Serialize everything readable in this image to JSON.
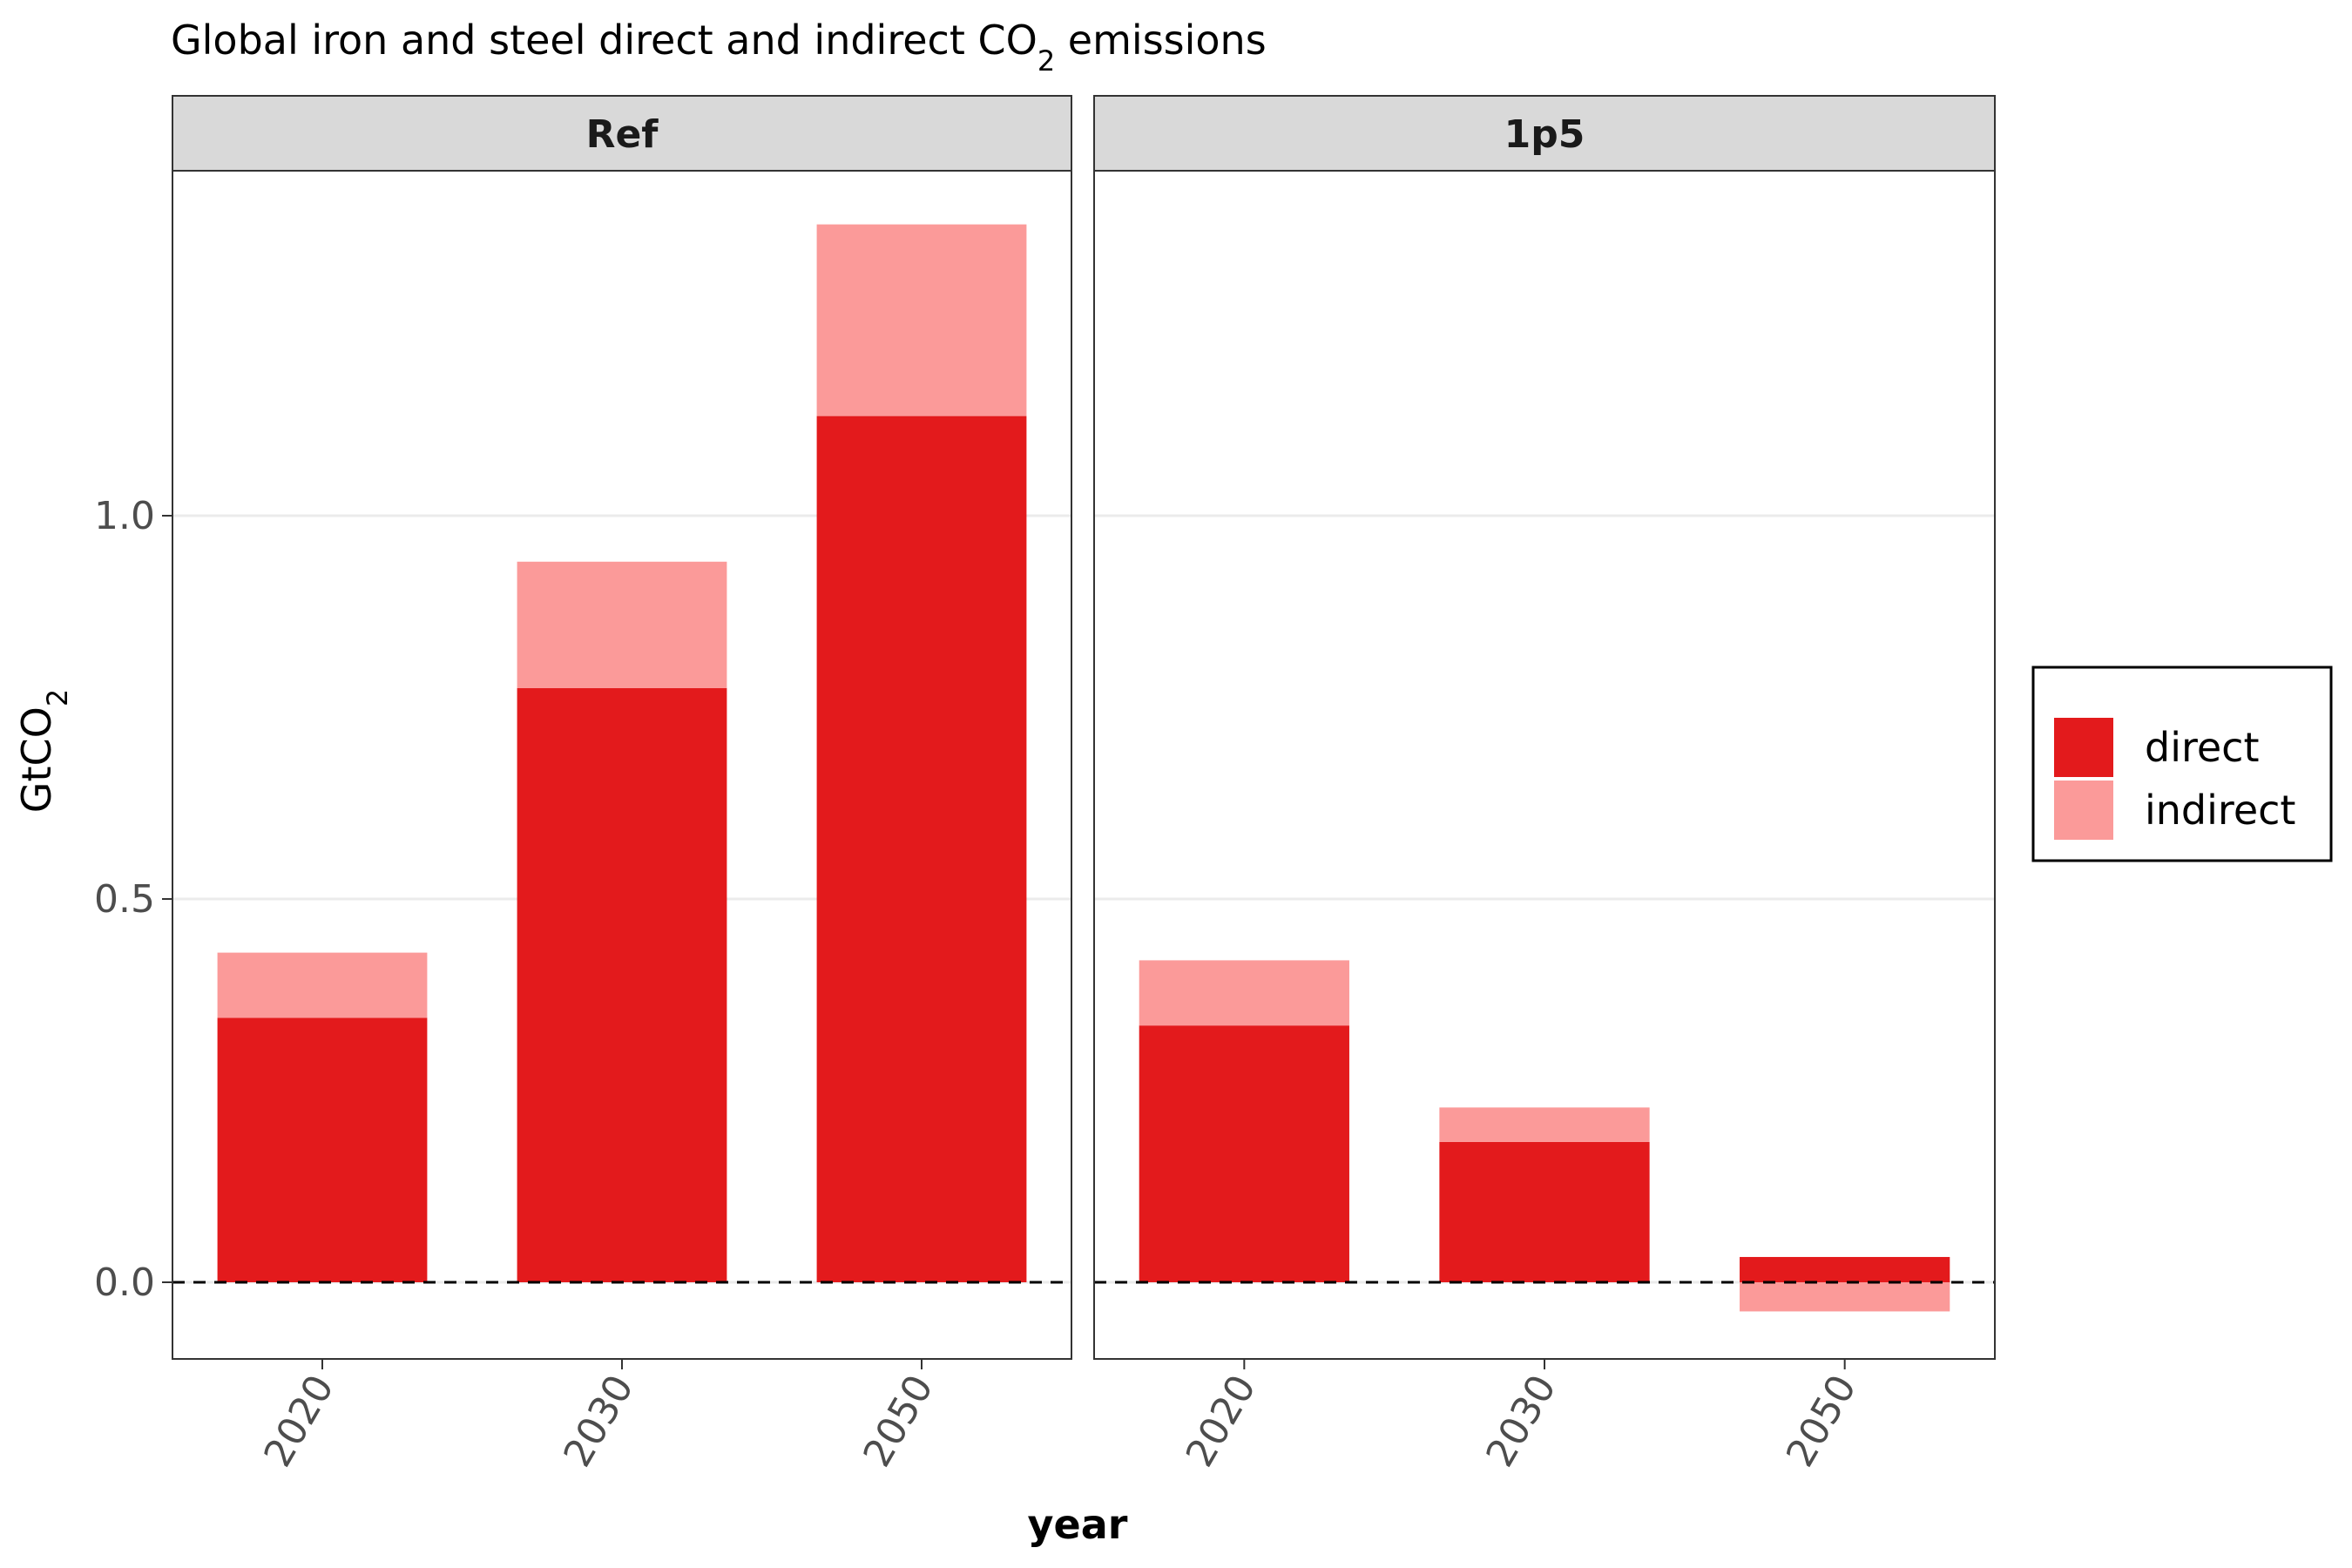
{
  "chart_data": {
    "type": "bar",
    "stacked": true,
    "title": "Global iron and steel direct and indirect CO",
    "title_subscript": "2",
    "title_suffix": " emissions",
    "xlabel": "year",
    "ylabel": "GtCO",
    "ylabel_subscript": "2",
    "ylim": [
      -0.1,
      1.45
    ],
    "yticks": [
      0.0,
      0.5,
      1.0
    ],
    "ytick_labels": [
      "0.0",
      "0.5",
      "1.0"
    ],
    "grid": true,
    "zero_line": "dashed",
    "legend_position": "right",
    "categories": [
      "2020",
      "2030",
      "2050"
    ],
    "facets": [
      {
        "name": "Ref",
        "series": [
          {
            "name": "direct",
            "values": [
              0.345,
              0.775,
              1.13
            ]
          },
          {
            "name": "indirect",
            "values": [
              0.085,
              0.165,
              0.25
            ]
          }
        ]
      },
      {
        "name": "1p5",
        "series": [
          {
            "name": "direct",
            "values": [
              0.335,
              0.183,
              0.033
            ]
          },
          {
            "name": "indirect",
            "values": [
              0.085,
              0.045,
              -0.038
            ]
          }
        ]
      }
    ],
    "legend": [
      {
        "name": "direct",
        "color": "#e31a1c"
      },
      {
        "name": "indirect",
        "color": "#fb9a99"
      }
    ]
  }
}
